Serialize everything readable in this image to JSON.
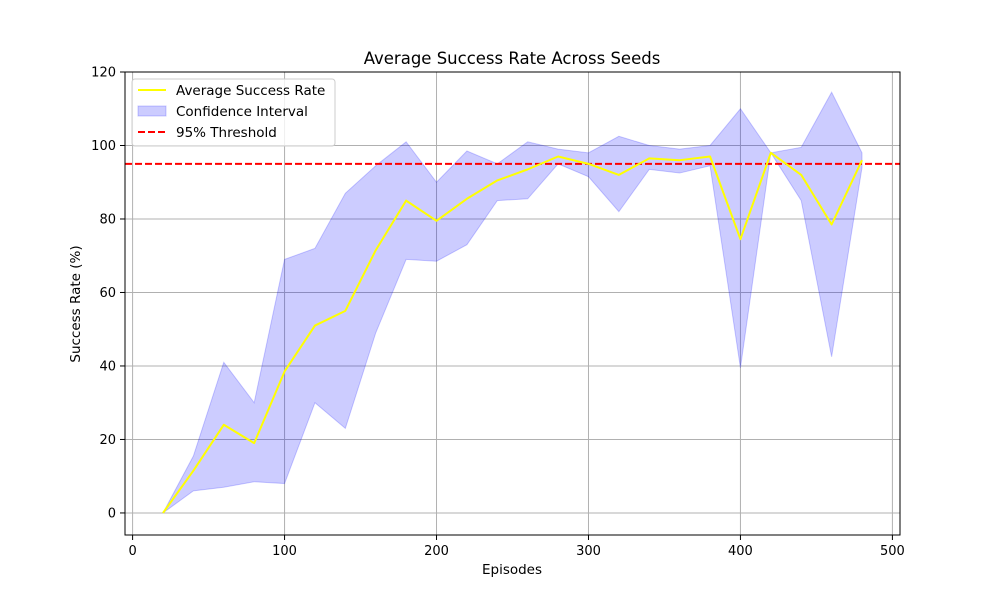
{
  "chart_data": {
    "type": "line",
    "title": "Average Success Rate Across Seeds",
    "xlabel": "Episodes",
    "ylabel": "Success Rate (%)",
    "xlim": [
      -5,
      505
    ],
    "ylim": [
      -6,
      120
    ],
    "xticks": [
      0,
      100,
      200,
      300,
      400,
      500
    ],
    "yticks": [
      0,
      20,
      40,
      60,
      80,
      100,
      120
    ],
    "grid": true,
    "legend_position": "top-left",
    "x": [
      20,
      40,
      60,
      80,
      100,
      120,
      140,
      160,
      180,
      200,
      220,
      240,
      260,
      280,
      300,
      320,
      340,
      360,
      380,
      400,
      420,
      440,
      460,
      480
    ],
    "series": [
      {
        "name": "Average Success Rate",
        "kind": "line",
        "color": "#ffff00",
        "values": [
          0,
          11.5,
          24,
          19,
          38.5,
          51,
          55,
          71.5,
          85,
          79.5,
          85.5,
          90.5,
          93.5,
          97,
          95,
          92,
          96.5,
          96,
          97,
          74.5,
          98,
          92,
          78.5,
          96
        ]
      },
      {
        "name": "Confidence Interval",
        "kind": "band",
        "color": "#0000ff",
        "opacity": 0.2,
        "upper": [
          0,
          15.5,
          41,
          30,
          69,
          72,
          87,
          94.5,
          101,
          90,
          98.5,
          95,
          101,
          99,
          98,
          102.5,
          100,
          99,
          100,
          110,
          98,
          99.5,
          114.5,
          98
        ],
        "lower": [
          0,
          6,
          7,
          8.5,
          8,
          30,
          23,
          49,
          69,
          68.5,
          73,
          85,
          85.5,
          95,
          91.5,
          82,
          93.5,
          92.5,
          94.5,
          39.5,
          98,
          85,
          42.5,
          94
        ]
      },
      {
        "name": "95% Threshold",
        "kind": "hline",
        "color": "#ff0000",
        "dash": "dashed",
        "value": 95
      }
    ]
  }
}
